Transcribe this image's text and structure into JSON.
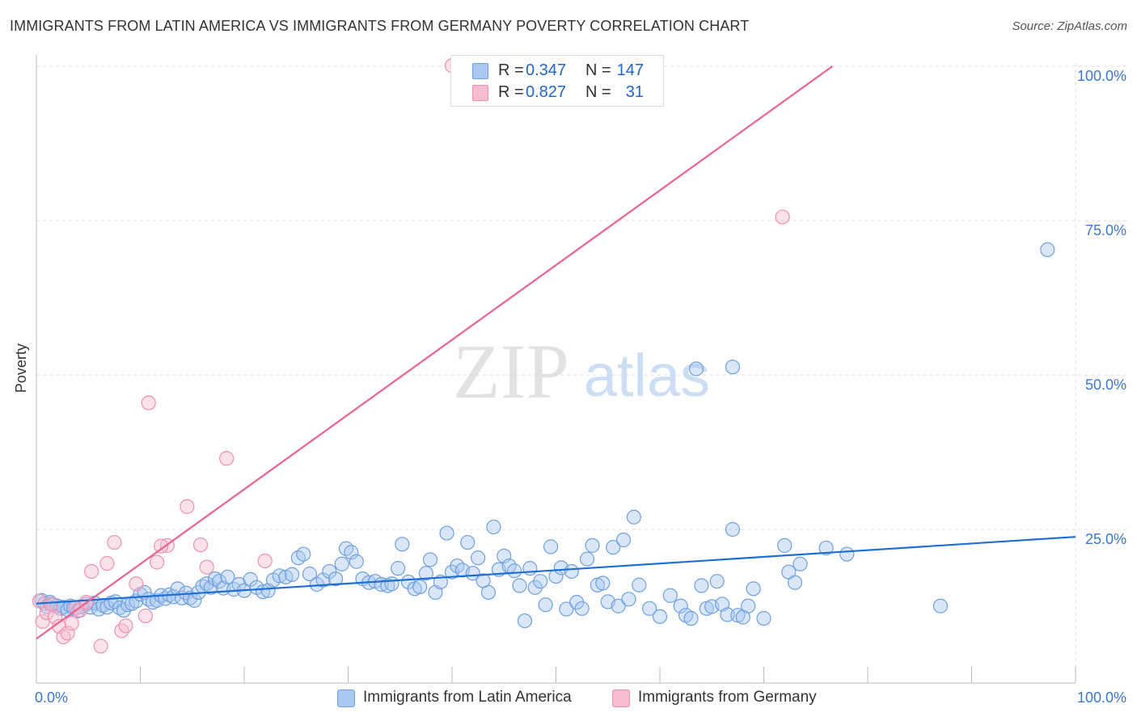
{
  "header": {
    "title": "IMMIGRANTS FROM LATIN AMERICA VS IMMIGRANTS FROM GERMANY POVERTY CORRELATION CHART",
    "source": "Source: ZipAtlas.com"
  },
  "watermark": {
    "zip": "ZIP",
    "atlas": "atlas"
  },
  "legend": {
    "rows": [
      {
        "r_label": "R =",
        "r_value": "0.347",
        "n_label": "N =",
        "n_value": "147",
        "color": "#a9c8f0"
      },
      {
        "r_label": "R =",
        "r_value": "0.827",
        "n_label": "N =",
        "n_value": "31",
        "color": "#f7bcd0"
      }
    ]
  },
  "bottom_legend": {
    "items": [
      {
        "label": "Immigrants from Latin America",
        "color": "#a9c8f0"
      },
      {
        "label": "Immigrants from Germany",
        "color": "#f7bcd0"
      }
    ]
  },
  "colors": {
    "blue_fill": "#a9c8f0",
    "blue_stroke": "#6fa0de",
    "blue_line": "#1f6fd1",
    "pink_fill": "#f7bcd0",
    "pink_stroke": "#ee90b0",
    "pink_line": "#e8648e",
    "tick_label": "#3a78d0",
    "grid": "#dddddd"
  },
  "chart_data": {
    "type": "scatter",
    "title": "IMMIGRANTS FROM LATIN AMERICA VS IMMIGRANTS FROM GERMANY POVERTY CORRELATION CHART",
    "xlabel": "",
    "ylabel": "Poverty",
    "xlim": [
      0,
      100
    ],
    "ylim": [
      0,
      105
    ],
    "x_tick_labels": [
      "0.0%",
      "100.0%"
    ],
    "y_ticks": [
      25,
      50,
      75,
      100
    ],
    "y_tick_labels": [
      "25.0%",
      "50.0%",
      "75.0%",
      "100.0%"
    ],
    "grid": "horizontal dashed",
    "legend_placement": "top-center",
    "series": [
      {
        "name": "Immigrants from Latin America",
        "color": "#a9c8f0",
        "trend": {
          "x": [
            0,
            100
          ],
          "y": [
            13.0,
            23.8
          ]
        },
        "points": [
          [
            0.5,
            13.5
          ],
          [
            0.8,
            13
          ],
          [
            1,
            12.5
          ],
          [
            1.3,
            13.2
          ],
          [
            1.6,
            12.8
          ],
          [
            2,
            12.6
          ],
          [
            2.3,
            12.2
          ],
          [
            2.6,
            12.4
          ],
          [
            3,
            12
          ],
          [
            3.3,
            12.6
          ],
          [
            3.6,
            12.3
          ],
          [
            4,
            11.8
          ],
          [
            4.3,
            12.5
          ],
          [
            4.8,
            12.9
          ],
          [
            5.2,
            12.4
          ],
          [
            5.6,
            13.1
          ],
          [
            6,
            12.1
          ],
          [
            6.4,
            12.7
          ],
          [
            6.8,
            12.4
          ],
          [
            7.2,
            13.1
          ],
          [
            7.6,
            13.3
          ],
          [
            8,
            12.3
          ],
          [
            8.4,
            11.9
          ],
          [
            8.8,
            12.8
          ],
          [
            9.2,
            13
          ],
          [
            9.6,
            13.4
          ],
          [
            10,
            14.5
          ],
          [
            10.4,
            14.8
          ],
          [
            10.8,
            13.7
          ],
          [
            11.2,
            13.2
          ],
          [
            11.6,
            13.5
          ],
          [
            12,
            14.3
          ],
          [
            12.4,
            13.8
          ],
          [
            12.8,
            14.4
          ],
          [
            13.2,
            14.1
          ],
          [
            13.6,
            15.4
          ],
          [
            14,
            13.9
          ],
          [
            14.4,
            14.7
          ],
          [
            14.8,
            13.9
          ],
          [
            15.2,
            13.5
          ],
          [
            15.6,
            14.8
          ],
          [
            16,
            15.8
          ],
          [
            16.4,
            16.2
          ],
          [
            16.8,
            15.6
          ],
          [
            17.2,
            17
          ],
          [
            17.6,
            16.6
          ],
          [
            18,
            15.5
          ],
          [
            18.4,
            17.3
          ],
          [
            19,
            15.3
          ],
          [
            19.5,
            16.1
          ],
          [
            20,
            15.1
          ],
          [
            20.6,
            16.9
          ],
          [
            21.2,
            15.6
          ],
          [
            21.8,
            14.9
          ],
          [
            22.3,
            15.1
          ],
          [
            22.8,
            16.8
          ],
          [
            23.4,
            17.5
          ],
          [
            24,
            17.3
          ],
          [
            24.6,
            17.7
          ],
          [
            25.2,
            20.4
          ],
          [
            25.7,
            21
          ],
          [
            26.3,
            17.8
          ],
          [
            27,
            16.1
          ],
          [
            27.6,
            16.8
          ],
          [
            28.2,
            18.2
          ],
          [
            28.8,
            17
          ],
          [
            29.4,
            19.4
          ],
          [
            29.8,
            21.9
          ],
          [
            30.3,
            21.3
          ],
          [
            30.8,
            19.8
          ],
          [
            31.4,
            17
          ],
          [
            32,
            16.4
          ],
          [
            32.6,
            16.6
          ],
          [
            33.2,
            16.1
          ],
          [
            33.8,
            15.9
          ],
          [
            34.2,
            16.2
          ],
          [
            34.8,
            18.7
          ],
          [
            35.2,
            22.6
          ],
          [
            35.8,
            16.5
          ],
          [
            36.4,
            15.4
          ],
          [
            36.9,
            15.7
          ],
          [
            37.5,
            17.9
          ],
          [
            37.9,
            20.1
          ],
          [
            38.4,
            14.8
          ],
          [
            38.9,
            16.5
          ],
          [
            39.5,
            24.4
          ],
          [
            40,
            18.1
          ],
          [
            40.5,
            19.1
          ],
          [
            41,
            18.4
          ],
          [
            41.5,
            22.9
          ],
          [
            42,
            17.9
          ],
          [
            42.5,
            20.4
          ],
          [
            43,
            16.7
          ],
          [
            43.5,
            14.8
          ],
          [
            44,
            25.4
          ],
          [
            44.5,
            18.5
          ],
          [
            45,
            20.7
          ],
          [
            45.5,
            19.1
          ],
          [
            46,
            18.3
          ],
          [
            46.5,
            15.9
          ],
          [
            47,
            10.2
          ],
          [
            47.5,
            18.7
          ],
          [
            48,
            15.6
          ],
          [
            48.5,
            16.6
          ],
          [
            49,
            12.8
          ],
          [
            49.5,
            22.2
          ],
          [
            50,
            17.4
          ],
          [
            50.5,
            18.8
          ],
          [
            51,
            12.1
          ],
          [
            51.5,
            18.2
          ],
          [
            52,
            13.2
          ],
          [
            52.5,
            12.2
          ],
          [
            53,
            20.2
          ],
          [
            53.5,
            22.4
          ],
          [
            54,
            16
          ],
          [
            54.5,
            16.3
          ],
          [
            55,
            13.3
          ],
          [
            55.5,
            22.1
          ],
          [
            56,
            12.6
          ],
          [
            56.5,
            23.3
          ],
          [
            57,
            13.7
          ],
          [
            57.5,
            27
          ],
          [
            58,
            16
          ],
          [
            59,
            12.2
          ],
          [
            60,
            10.9
          ],
          [
            61,
            14.3
          ],
          [
            62,
            12.6
          ],
          [
            62.5,
            11.1
          ],
          [
            63,
            10.6
          ],
          [
            64,
            15.9
          ],
          [
            64.5,
            12.2
          ],
          [
            65,
            12.5
          ],
          [
            65.5,
            16.6
          ],
          [
            66,
            12.9
          ],
          [
            66.5,
            11.2
          ],
          [
            67,
            25
          ],
          [
            67.5,
            11.1
          ],
          [
            68,
            10.8
          ],
          [
            68.5,
            12.6
          ],
          [
            69,
            15.4
          ],
          [
            70,
            10.6
          ],
          [
            72,
            22.4
          ],
          [
            72.4,
            18.1
          ],
          [
            73,
            16.4
          ],
          [
            73.5,
            19.4
          ],
          [
            76,
            22
          ],
          [
            78,
            21
          ],
          [
            87,
            12.6
          ],
          [
            63.5,
            51
          ],
          [
            67,
            51.3
          ],
          [
            97.3,
            70.3
          ]
        ]
      },
      {
        "name": "Immigrants from Germany",
        "color": "#f7bcd0",
        "trend": {
          "x": [
            0,
            76.6
          ],
          "y": [
            7.3,
            100
          ]
        },
        "points": [
          [
            0.3,
            13.4
          ],
          [
            0.6,
            10.1
          ],
          [
            1,
            11.5
          ],
          [
            1.4,
            12.9
          ],
          [
            1.8,
            10.8
          ],
          [
            2.2,
            9.3
          ],
          [
            2.6,
            7.6
          ],
          [
            3,
            8.2
          ],
          [
            3.4,
            9.8
          ],
          [
            3.8,
            12.3
          ],
          [
            4.2,
            11.9
          ],
          [
            4.8,
            13.2
          ],
          [
            5.3,
            18.2
          ],
          [
            6.2,
            6.1
          ],
          [
            6.8,
            19.5
          ],
          [
            7.5,
            22.9
          ],
          [
            8.2,
            8.6
          ],
          [
            8.6,
            9.4
          ],
          [
            9.6,
            16.2
          ],
          [
            10.5,
            11
          ],
          [
            10.8,
            45.5
          ],
          [
            11.6,
            19.7
          ],
          [
            12.6,
            22.4
          ],
          [
            14.5,
            28.7
          ],
          [
            15.8,
            22.5
          ],
          [
            16.4,
            18.9
          ],
          [
            18.3,
            36.5
          ],
          [
            22,
            19.9
          ],
          [
            40,
            100.1
          ],
          [
            71.8,
            75.6
          ],
          [
            12,
            22.3
          ]
        ]
      }
    ]
  }
}
